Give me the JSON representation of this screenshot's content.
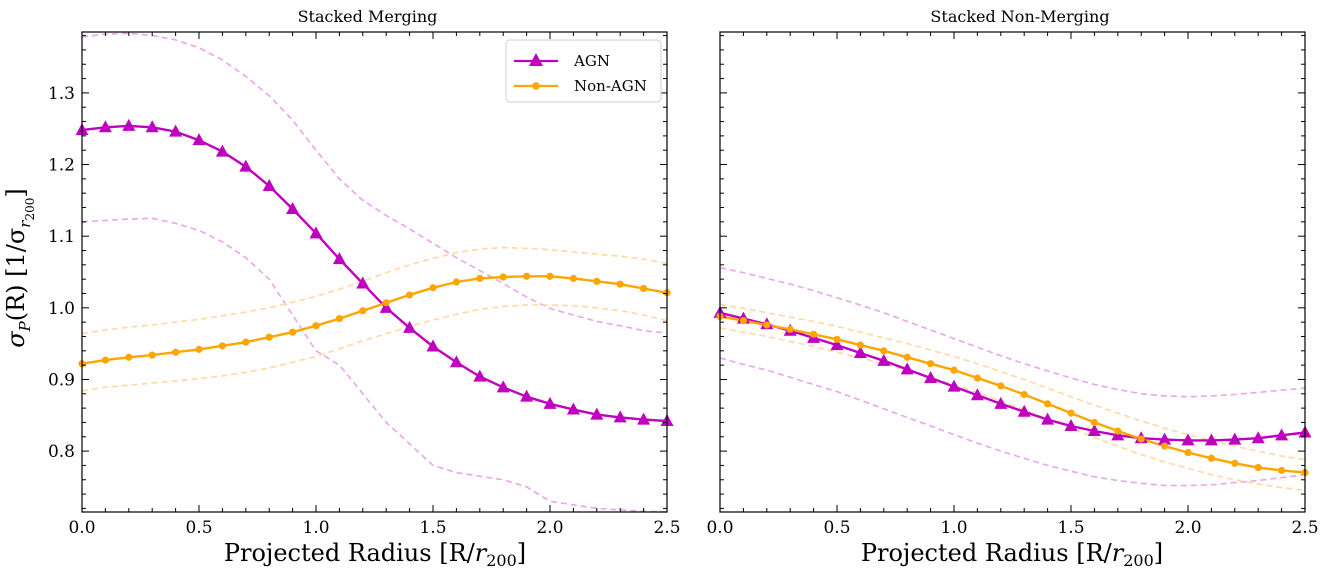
{
  "figure": {
    "ylabel_main": "σ",
    "ylabel_sub": "P",
    "ylabel_mid": "(R)  [1/σ",
    "ylabel_sub2": "r",
    "ylabel_sub3": "200",
    "ylabel_end": "]"
  },
  "chart_data": [
    {
      "type": "line",
      "title": "Stacked Merging",
      "xlabel_main": "Projected Radius [R/",
      "xlabel_r": "r",
      "xlabel_sub": "200",
      "xlabel_end": "]",
      "xlim": [
        0.0,
        2.5
      ],
      "ylim": [
        0.715,
        1.385
      ],
      "xticks": [
        "0.0",
        "0.5",
        "1.0",
        "1.5",
        "2.0",
        "2.5"
      ],
      "yticks": [
        "0.8",
        "0.9",
        "1.0",
        "1.1",
        "1.2",
        "1.3"
      ],
      "legend": {
        "placement": "top-right",
        "entries": [
          "AGN",
          "Non-AGN"
        ]
      },
      "x": [
        0.0,
        0.1,
        0.2,
        0.3,
        0.4,
        0.5,
        0.6,
        0.7,
        0.8,
        0.9,
        1.0,
        1.1,
        1.2,
        1.3,
        1.4,
        1.5,
        1.6,
        1.7,
        1.8,
        1.9,
        2.0,
        2.1,
        2.2,
        2.3,
        2.4,
        2.5
      ],
      "series": [
        {
          "name": "AGN",
          "color": "#bf00bf",
          "marker": "triangle",
          "values": [
            1.248,
            1.252,
            1.254,
            1.252,
            1.246,
            1.234,
            1.218,
            1.197,
            1.17,
            1.138,
            1.104,
            1.068,
            1.034,
            1.0,
            0.972,
            0.946,
            0.924,
            0.904,
            0.889,
            0.876,
            0.866,
            0.858,
            0.851,
            0.847,
            0.844,
            0.842
          ]
        },
        {
          "name": "Non-AGN",
          "color": "#ffa500",
          "marker": "circle",
          "values": [
            0.922,
            0.927,
            0.931,
            0.934,
            0.938,
            0.942,
            0.947,
            0.952,
            0.959,
            0.966,
            0.975,
            0.985,
            0.996,
            1.007,
            1.018,
            1.028,
            1.036,
            1.041,
            1.043,
            1.044,
            1.044,
            1.041,
            1.037,
            1.033,
            1.027,
            1.021
          ]
        }
      ],
      "bands": [
        {
          "of": "AGN",
          "color": "#e9a6ea",
          "style": "dashed",
          "upper": [
            1.378,
            1.382,
            1.383,
            1.38,
            1.374,
            1.363,
            1.346,
            1.323,
            1.296,
            1.262,
            1.22,
            1.18,
            1.15,
            1.129,
            1.11,
            1.09,
            1.07,
            1.052,
            1.034,
            1.015,
            0.999,
            0.99,
            0.981,
            0.975,
            0.968,
            0.965
          ],
          "lower": [
            1.12,
            1.122,
            1.124,
            1.125,
            1.118,
            1.108,
            1.092,
            1.07,
            1.04,
            0.99,
            0.94,
            0.92,
            0.88,
            0.84,
            0.81,
            0.78,
            0.77,
            0.765,
            0.76,
            0.75,
            0.73,
            0.725,
            0.72,
            0.718,
            0.716,
            0.715
          ]
        },
        {
          "of": "Non-AGN",
          "color": "#ffd9a3",
          "style": "dashed",
          "upper": [
            0.964,
            0.969,
            0.973,
            0.976,
            0.98,
            0.984,
            0.989,
            0.994,
            1.0,
            1.008,
            1.016,
            1.026,
            1.037,
            1.049,
            1.06,
            1.069,
            1.077,
            1.082,
            1.084,
            1.083,
            1.081,
            1.078,
            1.075,
            1.072,
            1.068,
            1.062
          ],
          "lower": [
            0.884,
            0.889,
            0.892,
            0.895,
            0.898,
            0.901,
            0.905,
            0.91,
            0.916,
            0.924,
            0.932,
            0.943,
            0.954,
            0.964,
            0.974,
            0.983,
            0.991,
            0.998,
            1.002,
            1.004,
            1.004,
            1.003,
            1.0,
            0.996,
            0.99,
            0.982
          ]
        }
      ]
    },
    {
      "type": "line",
      "title": "Stacked Non-Merging",
      "xlabel_main": "Projected Radius [R/",
      "xlabel_r": "r",
      "xlabel_sub": "200",
      "xlabel_end": "]",
      "xlim": [
        0.0,
        2.5
      ],
      "ylim": [
        0.715,
        1.385
      ],
      "xticks": [
        "0.0",
        "0.5",
        "1.0",
        "1.5",
        "2.0",
        "2.5"
      ],
      "yticks": [],
      "x": [
        0.0,
        0.1,
        0.2,
        0.3,
        0.4,
        0.5,
        0.6,
        0.7,
        0.8,
        0.9,
        1.0,
        1.1,
        1.2,
        1.3,
        1.4,
        1.5,
        1.6,
        1.7,
        1.8,
        1.9,
        2.0,
        2.1,
        2.2,
        2.3,
        2.4,
        2.5
      ],
      "series": [
        {
          "name": "AGN",
          "color": "#bf00bf",
          "marker": "triangle",
          "values": [
            0.993,
            0.985,
            0.977,
            0.968,
            0.958,
            0.948,
            0.937,
            0.926,
            0.914,
            0.902,
            0.89,
            0.878,
            0.866,
            0.855,
            0.844,
            0.835,
            0.828,
            0.822,
            0.818,
            0.816,
            0.815,
            0.815,
            0.816,
            0.818,
            0.822,
            0.826
          ]
        },
        {
          "name": "Non-AGN",
          "color": "#ffa500",
          "marker": "circle",
          "values": [
            0.988,
            0.982,
            0.976,
            0.97,
            0.963,
            0.956,
            0.948,
            0.94,
            0.931,
            0.922,
            0.913,
            0.902,
            0.891,
            0.879,
            0.866,
            0.853,
            0.84,
            0.828,
            0.817,
            0.807,
            0.798,
            0.79,
            0.783,
            0.777,
            0.773,
            0.77
          ]
        }
      ],
      "bands": [
        {
          "of": "AGN",
          "color": "#e9a6ea",
          "style": "dashed",
          "upper": [
            1.056,
            1.049,
            1.041,
            1.033,
            1.024,
            1.014,
            1.004,
            0.993,
            0.981,
            0.969,
            0.957,
            0.945,
            0.933,
            0.922,
            0.912,
            0.902,
            0.893,
            0.886,
            0.88,
            0.877,
            0.876,
            0.877,
            0.879,
            0.882,
            0.885,
            0.888
          ],
          "lower": [
            0.93,
            0.921,
            0.913,
            0.903,
            0.893,
            0.883,
            0.871,
            0.859,
            0.847,
            0.835,
            0.823,
            0.811,
            0.8,
            0.79,
            0.78,
            0.772,
            0.764,
            0.759,
            0.755,
            0.752,
            0.752,
            0.753,
            0.756,
            0.759,
            0.763,
            0.767
          ]
        },
        {
          "of": "Non-AGN",
          "color": "#ffd9a3",
          "style": "dashed",
          "upper": [
            1.005,
            0.999,
            0.993,
            0.987,
            0.981,
            0.974,
            0.966,
            0.958,
            0.95,
            0.941,
            0.932,
            0.922,
            0.911,
            0.9,
            0.888,
            0.876,
            0.864,
            0.853,
            0.842,
            0.832,
            0.823,
            0.815,
            0.807,
            0.8,
            0.793,
            0.788
          ],
          "lower": [
            0.972,
            0.966,
            0.96,
            0.953,
            0.946,
            0.938,
            0.93,
            0.922,
            0.913,
            0.903,
            0.893,
            0.882,
            0.87,
            0.858,
            0.845,
            0.832,
            0.819,
            0.807,
            0.795,
            0.785,
            0.776,
            0.767,
            0.76,
            0.754,
            0.749,
            0.745
          ]
        }
      ]
    }
  ]
}
